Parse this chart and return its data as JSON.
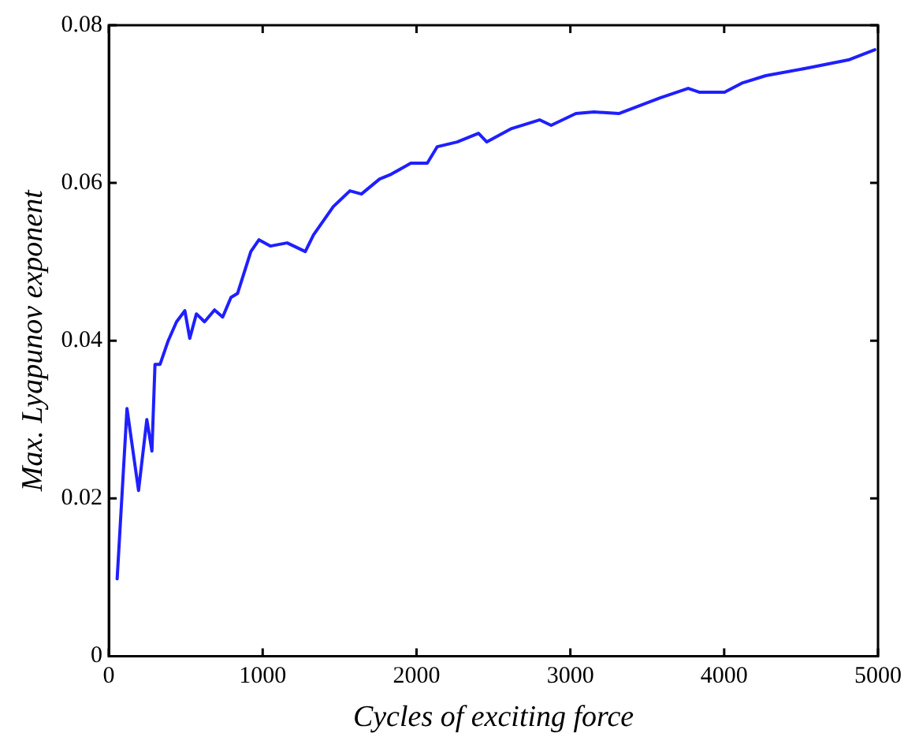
{
  "chart_data": {
    "type": "line",
    "xlabel": "Cycles of exciting force",
    "ylabel": "Max. Lyapunov exponent",
    "xlim": [
      0,
      5000
    ],
    "xticks": [
      0,
      1000,
      2000,
      3000,
      4000,
      5000
    ],
    "ylim": [
      0,
      0.08
    ],
    "yticks": [
      0,
      0.02,
      0.04,
      0.06,
      0.08
    ],
    "grid": false,
    "legend": false,
    "marker": "none",
    "line_style": "solid",
    "series": [
      {
        "color": "#1f1fff",
        "x": [
          54,
          118,
          193,
          247,
          280,
          300,
          333,
          386,
          440,
          494,
          526,
          569,
          622,
          687,
          740,
          794,
          837,
          923,
          976,
          1051,
          1159,
          1277,
          1330,
          1459,
          1567,
          1642,
          1760,
          1835,
          1963,
          2070,
          2135,
          2264,
          2403,
          2457,
          2618,
          2800,
          2875,
          3036,
          3154,
          3315,
          3584,
          3766,
          3841,
          4002,
          4120,
          4270,
          4549,
          4807,
          4979
        ],
        "values": [
          0.0098,
          0.0314,
          0.021,
          0.03,
          0.026,
          0.037,
          0.037,
          0.04,
          0.0424,
          0.0438,
          0.0403,
          0.0434,
          0.0424,
          0.0439,
          0.043,
          0.0455,
          0.046,
          0.0513,
          0.0528,
          0.052,
          0.0524,
          0.0513,
          0.0534,
          0.057,
          0.059,
          0.0586,
          0.0605,
          0.0611,
          0.0625,
          0.0625,
          0.0646,
          0.0652,
          0.0663,
          0.0652,
          0.0669,
          0.068,
          0.0673,
          0.0688,
          0.069,
          0.0688,
          0.0708,
          0.072,
          0.0715,
          0.0715,
          0.0727,
          0.0736,
          0.0746,
          0.0756,
          0.0769
        ]
      }
    ]
  }
}
